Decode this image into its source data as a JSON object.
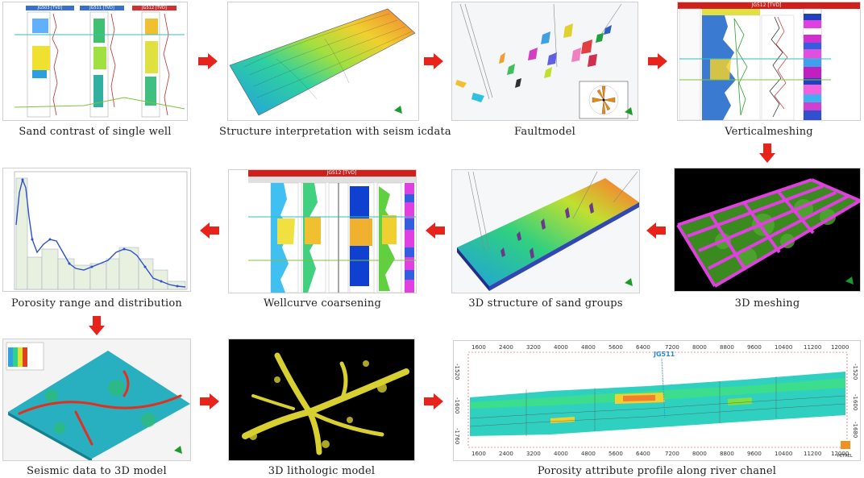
{
  "captions": {
    "p1": "Sand contrast of single well",
    "p2": "Structure interpretation with seism icdata",
    "p3": "Faultmodel",
    "p4": "Verticalmeshing",
    "p5": "Porosity range and distribution",
    "p6": "Wellcurve coarsening",
    "p7": "3D structure of sand groups",
    "p8": "3D  meshing",
    "p9": "Seismic data to 3D model",
    "p10": "3D lithologic  model",
    "p11": "Porosity attribute profile along river chanel"
  },
  "panel1": {
    "headers": [
      "JG503 [TVD]",
      "JG511 [TVD]",
      "JG512 [TVD]"
    ]
  },
  "panel4": {
    "header": "JG512 [TVD]"
  },
  "panel6": {
    "header": "JG512 [TVD]"
  },
  "panel11": {
    "x_ticks": [
      "1600",
      "2400",
      "3200",
      "4000",
      "4800",
      "5600",
      "6400",
      "7200",
      "8000",
      "8800",
      "9600",
      "10400",
      "11200",
      "12000"
    ],
    "y_ticks_left": [
      "-1520",
      "-1600",
      "-1760"
    ],
    "y_ticks_right": [
      "-1520",
      "-1600",
      "-1680"
    ],
    "well_label": "JG511",
    "logo": "PETREL"
  },
  "colors": {
    "arrow": "#e8231c",
    "accent_green": "#1e9a2a"
  }
}
